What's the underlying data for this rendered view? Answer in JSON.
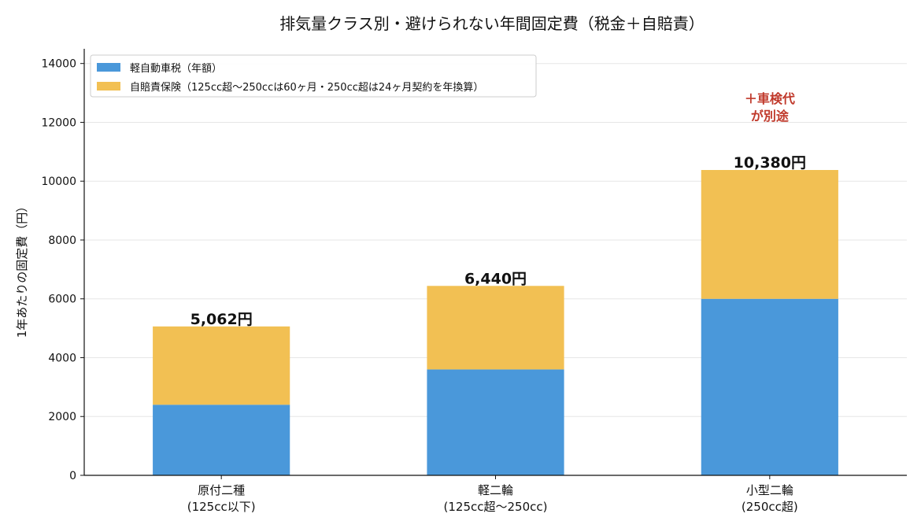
{
  "chart_data": {
    "type": "bar",
    "stacked": true,
    "title": "排気量クラス別・避けられない年間固定費（税金＋自賠責）",
    "xlabel": "",
    "ylabel": "1年あたりの固定費（円）",
    "ylim": [
      0,
      14500
    ],
    "yticks": [
      0,
      2000,
      4000,
      6000,
      8000,
      10000,
      12000,
      14000
    ],
    "grid": "y",
    "legend_position": "top-left",
    "categories": [
      [
        "原付二種",
        "(125cc以下)"
      ],
      [
        "軽二輪",
        "(125cc超〜250cc)"
      ],
      [
        "小型二輪",
        "(250cc超)"
      ]
    ],
    "series": [
      {
        "name": "軽自動車税（年額）",
        "color": "#4a98da",
        "values": [
          2400,
          3600,
          6000
        ]
      },
      {
        "name": "自賠責保険（125cc超〜250ccは60ヶ月・250cc超は24ヶ月契約を年換算）",
        "color": "#f2c053",
        "values": [
          2662,
          2840,
          4380
        ]
      }
    ],
    "total_labels": [
      "5,062円",
      "6,440円",
      "10,380円"
    ],
    "annotation": {
      "category_index": 2,
      "lines": [
        "＋車検代",
        "が別途"
      ],
      "color": "#c0392b",
      "y_top": 12650
    }
  }
}
